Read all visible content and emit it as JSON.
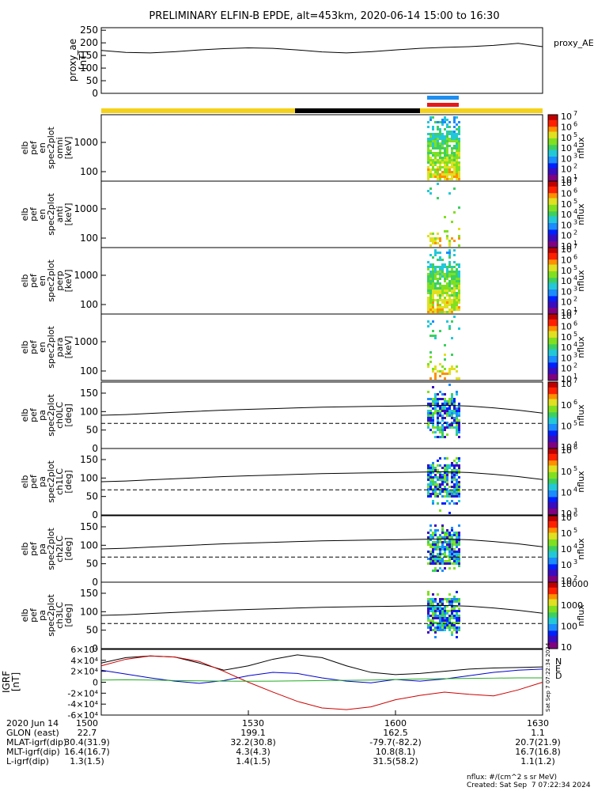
{
  "title": "PRELIMINARY ELFIN-B EPDE, alt=453km, 2020-06-14 15:00 to 16:30",
  "chart_data": [
    {
      "type": "line",
      "panel": "proxy_ae",
      "ylabel": [
        "proxy_ae",
        "[nT]"
      ],
      "legend": "proxy_AE",
      "ylim": [
        0,
        260
      ],
      "yticks": [
        "0",
        "50",
        "100",
        "150",
        "200",
        "250"
      ],
      "x": [
        0,
        5,
        10,
        15,
        20,
        25,
        30,
        35,
        40,
        45,
        50,
        55,
        60,
        65,
        70,
        75,
        80,
        85,
        90
      ],
      "values": [
        170,
        162,
        160,
        165,
        172,
        177,
        180,
        178,
        172,
        164,
        160,
        165,
        172,
        178,
        182,
        185,
        190,
        198,
        185
      ]
    },
    {
      "type": "heatmap",
      "panel": "en_spec2plot_omni",
      "ylabel": [
        "elb",
        "pef",
        "en",
        "spec2plot",
        "omni",
        "[keV]"
      ],
      "yticks": [
        "100",
        "1000"
      ],
      "colorbar_ticks": [
        "10",
        "10",
        "10",
        "10",
        "10",
        "10",
        "10"
      ],
      "colorbar_exp": [
        "1",
        "2",
        "3",
        "4",
        "5",
        "6",
        "7"
      ],
      "colorbar_label": "nflux"
    },
    {
      "type": "heatmap",
      "panel": "en_spec2plot_anti",
      "ylabel": [
        "elb",
        "pef",
        "en",
        "spec2plot",
        "anti",
        "[keV]"
      ],
      "yticks": [
        "100",
        "1000"
      ],
      "colorbar_ticks": [
        "10",
        "10",
        "10",
        "10",
        "10",
        "10",
        "10"
      ],
      "colorbar_exp": [
        "1",
        "2",
        "3",
        "4",
        "5",
        "6",
        "7"
      ],
      "colorbar_label": "nflux"
    },
    {
      "type": "heatmap",
      "panel": "en_spec2plot_perp",
      "ylabel": [
        "elb",
        "pef",
        "en",
        "spec2plot",
        "perp",
        "[keV]"
      ],
      "yticks": [
        "100",
        "1000"
      ],
      "colorbar_ticks": [
        "10",
        "10",
        "10",
        "10",
        "10",
        "10",
        "10"
      ],
      "colorbar_exp": [
        "1",
        "2",
        "3",
        "4",
        "5",
        "6",
        "7"
      ],
      "colorbar_label": "nflux"
    },
    {
      "type": "heatmap",
      "panel": "en_spec2plot_para",
      "ylabel": [
        "elb",
        "pef",
        "en",
        "spec2plot",
        "para",
        "[keV]"
      ],
      "yticks": [
        "100",
        "1000"
      ],
      "colorbar_ticks": [
        "10",
        "10",
        "10",
        "10",
        "10",
        "10",
        "10"
      ],
      "colorbar_exp": [
        "1",
        "2",
        "3",
        "4",
        "5",
        "6",
        "7"
      ],
      "colorbar_label": "nflux"
    },
    {
      "type": "heatmap",
      "panel": "pa_spec2plot_ch0LC",
      "ylabel": [
        "elb",
        "pef",
        "pa",
        "spec2plot",
        "ch0LC",
        "[deg]"
      ],
      "yticks": [
        "0",
        "50",
        "100",
        "150"
      ],
      "colorbar_ticks": [
        "10",
        "10",
        "10",
        "10"
      ],
      "colorbar_exp": [
        "4",
        "5",
        "6",
        "7"
      ],
      "colorbar_label": "nflux",
      "lc_line": [
        90,
        92,
        95,
        98,
        101,
        104,
        106,
        108,
        110,
        112,
        113,
        114,
        115,
        116,
        117,
        115,
        110,
        104,
        96
      ],
      "blc_line": 68
    },
    {
      "type": "heatmap",
      "panel": "pa_spec2plot_ch1LC",
      "ylabel": [
        "elb",
        "pef",
        "pa",
        "spec2plot",
        "ch1LC",
        "[deg]"
      ],
      "yticks": [
        "0",
        "50",
        "100",
        "150"
      ],
      "colorbar_ticks": [
        "10",
        "10",
        "10",
        "10"
      ],
      "colorbar_exp": [
        "3",
        "4",
        "5",
        "6"
      ],
      "colorbar_label": "nflux",
      "lc_line": [
        90,
        92,
        95,
        98,
        101,
        104,
        106,
        108,
        110,
        112,
        113,
        114,
        115,
        116,
        117,
        115,
        110,
        104,
        96
      ],
      "blc_line": 68
    },
    {
      "type": "heatmap",
      "panel": "pa_spec2plot_ch2LC",
      "ylabel": [
        "elb",
        "pef",
        "pa",
        "spec2plot",
        "ch2LC",
        "[deg]"
      ],
      "yticks": [
        "0",
        "50",
        "100",
        "150"
      ],
      "colorbar_ticks": [
        "10",
        "10",
        "10",
        "10",
        "10"
      ],
      "colorbar_exp": [
        "2",
        "3",
        "4",
        "5",
        "6"
      ],
      "colorbar_label": "nflux",
      "lc_line": [
        90,
        92,
        95,
        98,
        101,
        104,
        106,
        108,
        110,
        112,
        113,
        114,
        115,
        116,
        117,
        115,
        110,
        104,
        96
      ],
      "blc_line": 68
    },
    {
      "type": "heatmap",
      "panel": "pa_spec2plot_ch3LC",
      "ylabel": [
        "elb",
        "pef",
        "pa",
        "spec2plot",
        "ch3LC",
        "[deg]"
      ],
      "yticks": [
        "0",
        "50",
        "100",
        "150"
      ],
      "colorbar_ticks": [
        "10",
        "100",
        "1000",
        "10000"
      ],
      "colorbar_label": "nflux",
      "lc_line": [
        90,
        92,
        95,
        98,
        101,
        104,
        106,
        108,
        110,
        112,
        113,
        114,
        115,
        116,
        117,
        115,
        110,
        104,
        96
      ],
      "blc_line": 68
    },
    {
      "type": "line",
      "panel": "igrf",
      "ylabel": [
        "IGRF",
        "[nT]"
      ],
      "ylim": [
        -60000,
        60000
      ],
      "yticks": [
        "-6×10⁴",
        "-4×10⁴",
        "-2×10⁴",
        "0",
        "2×10⁴",
        "4×10⁴",
        "6×10⁴"
      ],
      "legend": [
        "N",
        "E",
        "D"
      ],
      "x": [
        0,
        5,
        10,
        15,
        20,
        25,
        30,
        35,
        40,
        45,
        50,
        55,
        60,
        65,
        70,
        75,
        80,
        85,
        90
      ],
      "series": [
        {
          "color": "#000000",
          "values": [
            35000,
            45000,
            48000,
            46000,
            35000,
            22000,
            30000,
            42000,
            50000,
            45000,
            30000,
            18000,
            14000,
            16000,
            20000,
            24000,
            26000,
            27000,
            28000
          ]
        },
        {
          "color": "#0000cc",
          "values": [
            22000,
            15000,
            8000,
            2000,
            -2000,
            3000,
            12000,
            18000,
            16000,
            8000,
            2000,
            -1000,
            5000,
            2000,
            6000,
            12000,
            18000,
            22000,
            24000
          ]
        },
        {
          "color": "#cc0000",
          "values": [
            30000,
            42000,
            48000,
            46000,
            38000,
            20000,
            0,
            -18000,
            -35000,
            -47000,
            -50000,
            -45000,
            -32000,
            -24000,
            -18000,
            -22000,
            -25000,
            -14000,
            0
          ]
        },
        {
          "color": "#22aa22",
          "values": [
            4000,
            4500,
            4000,
            3000,
            2500,
            2000,
            1800,
            2000,
            2500,
            3000,
            3500,
            4000,
            5000,
            6000,
            6500,
            7000,
            7500,
            8000,
            8000
          ]
        }
      ]
    }
  ],
  "axis": {
    "row_labels": [
      "2020 Jun 14",
      "GLON (east)",
      "MLAT-igrf(dip)",
      "MLT-igrf(dip)",
      "L-igrf(dip)"
    ],
    "columns": [
      [
        "1500",
        "22.7",
        "30.4(31.9)",
        "16.4(16.7)",
        "1.3(1.5)"
      ],
      [
        "1530",
        "199.1",
        "32.2(30.8)",
        "4.3(4.3)",
        "1.4(1.5)"
      ],
      [
        "1600",
        "162.5",
        "-79.7(-82.2)",
        "10.8(8.1)",
        "31.5(58.2)"
      ],
      [
        "1630",
        "1.1",
        "20.7(21.9)",
        "16.7(16.8)",
        "1.1(1.2)"
      ]
    ]
  },
  "footer": {
    "units": "nflux: #/(cm^2 s sr MeV)",
    "created": "Created: Sat Sep  7 07:22:34 2024",
    "side_stamp": "Sat Sep  7 07:22:34 2024"
  }
}
